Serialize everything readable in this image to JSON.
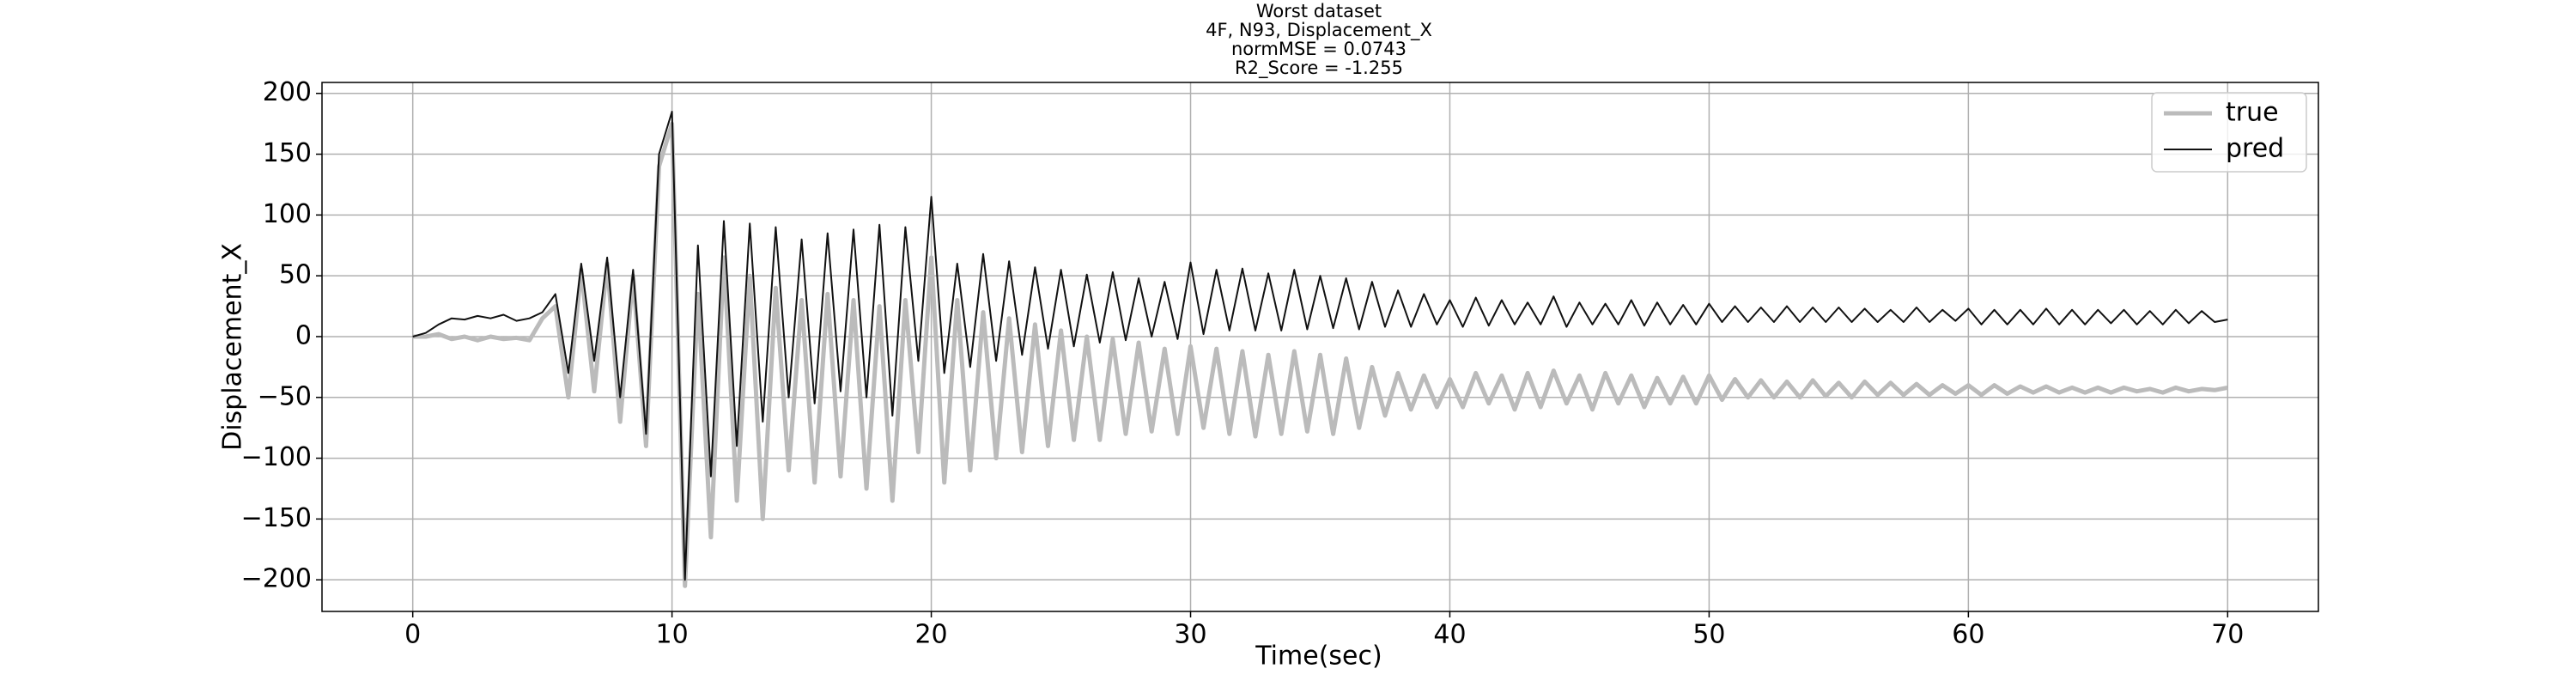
{
  "chart_data": {
    "type": "line",
    "title": [
      "Worst dataset",
      "4F, N93, Displacement_X",
      "normMSE = 0.0743",
      "R2_Score = -1.255"
    ],
    "xlabel": "Time(sec)",
    "ylabel": "Displacement_X",
    "xlim": [
      -3.5,
      73.5
    ],
    "ylim": [
      -226,
      209
    ],
    "xticks": [
      0,
      10,
      20,
      30,
      40,
      50,
      60,
      70
    ],
    "yticks": [
      -200,
      -150,
      -100,
      -50,
      0,
      50,
      100,
      150,
      200
    ],
    "yticklabels": [
      "−200",
      "−150",
      "−100",
      "−50",
      "0",
      "50",
      "100",
      "150",
      "200"
    ],
    "grid": true,
    "legend": "upper right",
    "x": [
      0,
      0.5,
      1,
      1.5,
      2,
      2.5,
      3,
      3.5,
      4,
      4.5,
      5,
      5.5,
      6,
      6.5,
      7,
      7.5,
      8,
      8.5,
      9,
      9.5,
      10,
      10.5,
      11,
      11.5,
      12,
      12.5,
      13,
      13.5,
      14,
      14.5,
      15,
      15.5,
      16,
      16.5,
      17,
      17.5,
      18,
      18.5,
      19,
      19.5,
      20,
      20.5,
      21,
      21.5,
      22,
      22.5,
      23,
      23.5,
      24,
      24.5,
      25,
      25.5,
      26,
      26.5,
      27,
      27.5,
      28,
      28.5,
      29,
      29.5,
      30,
      30.5,
      31,
      31.5,
      32,
      32.5,
      33,
      33.5,
      34,
      34.5,
      35,
      35.5,
      36,
      36.5,
      37,
      37.5,
      38,
      38.5,
      39,
      39.5,
      40,
      40.5,
      41,
      41.5,
      42,
      42.5,
      43,
      43.5,
      44,
      44.5,
      45,
      45.5,
      46,
      46.5,
      47,
      47.5,
      48,
      48.5,
      49,
      49.5,
      50,
      50.5,
      51,
      51.5,
      52,
      52.5,
      53,
      53.5,
      54,
      54.5,
      55,
      55.5,
      56,
      56.5,
      57,
      57.5,
      58,
      58.5,
      59,
      59.5,
      60,
      60.5,
      61,
      61.5,
      62,
      62.5,
      63,
      63.5,
      64,
      64.5,
      65,
      65.5,
      66,
      66.5,
      67,
      67.5,
      68,
      68.5,
      69,
      69.5,
      70
    ],
    "series": [
      {
        "name": "true",
        "color": "#bbbbbb",
        "width": 5,
        "values": [
          0,
          0,
          2,
          -2,
          0,
          -3,
          0,
          -2,
          -1,
          -3,
          15,
          25,
          -50,
          55,
          -45,
          60,
          -70,
          50,
          -90,
          140,
          175,
          -205,
          35,
          -165,
          65,
          -135,
          50,
          -150,
          40,
          -110,
          30,
          -120,
          35,
          -115,
          30,
          -125,
          25,
          -135,
          30,
          -95,
          65,
          -120,
          30,
          -110,
          20,
          -100,
          15,
          -95,
          10,
          -90,
          5,
          -85,
          0,
          -85,
          -2,
          -80,
          -5,
          -78,
          -10,
          -80,
          -8,
          -75,
          -10,
          -80,
          -12,
          -82,
          -15,
          -80,
          -12,
          -78,
          -15,
          -80,
          -18,
          -75,
          -25,
          -65,
          -30,
          -60,
          -32,
          -58,
          -35,
          -58,
          -30,
          -55,
          -32,
          -60,
          -30,
          -58,
          -28,
          -55,
          -32,
          -60,
          -30,
          -55,
          -32,
          -58,
          -34,
          -55,
          -33,
          -55,
          -32,
          -52,
          -35,
          -50,
          -36,
          -50,
          -37,
          -50,
          -36,
          -49,
          -38,
          -50,
          -37,
          -48,
          -38,
          -48,
          -39,
          -48,
          -40,
          -47,
          -40,
          -48,
          -40,
          -47,
          -41,
          -46,
          -41,
          -46,
          -42,
          -46,
          -42,
          -46,
          -42,
          -45,
          -43,
          -46,
          -42,
          -45,
          -43,
          -44,
          -42
        ]
      },
      {
        "name": "pred",
        "color": "#111111",
        "width": 2,
        "values": [
          0,
          3,
          10,
          15,
          14,
          17,
          15,
          18,
          13,
          15,
          20,
          35,
          -30,
          60,
          -20,
          65,
          -50,
          55,
          -80,
          150,
          185,
          -200,
          75,
          -115,
          95,
          -90,
          93,
          -70,
          90,
          -50,
          80,
          -55,
          85,
          -45,
          88,
          -50,
          92,
          -65,
          90,
          -20,
          115,
          -30,
          60,
          -25,
          68,
          -20,
          62,
          -15,
          57,
          -10,
          55,
          -8,
          51,
          -5,
          53,
          -3,
          48,
          0,
          45,
          -2,
          61,
          2,
          55,
          5,
          56,
          5,
          52,
          5,
          55,
          6,
          50,
          7,
          48,
          6,
          45,
          8,
          38,
          8,
          35,
          10,
          30,
          8,
          32,
          9,
          30,
          10,
          28,
          10,
          33,
          8,
          28,
          10,
          27,
          10,
          30,
          9,
          28,
          10,
          26,
          10,
          27,
          12,
          25,
          12,
          24,
          12,
          25,
          12,
          24,
          12,
          24,
          12,
          23,
          12,
          22,
          12,
          24,
          12,
          22,
          13,
          23,
          10,
          22,
          10,
          22,
          10,
          23,
          10,
          22,
          10,
          22,
          11,
          22,
          10,
          21,
          10,
          22,
          11,
          21,
          12,
          14
        ]
      }
    ]
  }
}
